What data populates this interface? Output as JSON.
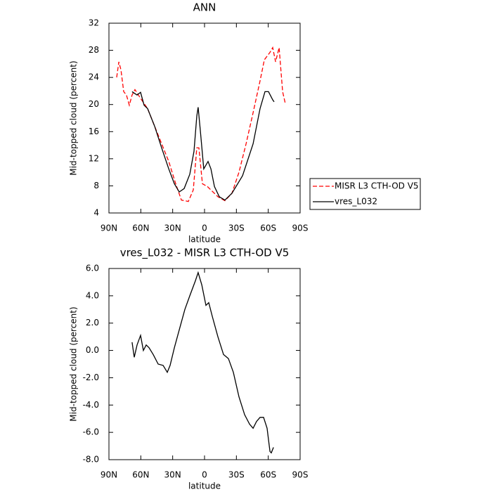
{
  "chart_data": [
    {
      "type": "line",
      "title": "ANN",
      "xlabel": "latitude",
      "ylabel": "Mid-topped cloud (percent)",
      "xlim": [
        90,
        -90
      ],
      "xticks": [
        {
          "value": 90,
          "label": "90N"
        },
        {
          "value": 60,
          "label": "60N"
        },
        {
          "value": 30,
          "label": "30N"
        },
        0,
        {
          "value": -30,
          "label": "30S"
        },
        {
          "value": -60,
          "label": "60S"
        },
        {
          "value": -90,
          "label": "90S"
        }
      ],
      "ylim": [
        4,
        32
      ],
      "yticks": [
        4,
        8,
        12,
        16,
        20,
        24,
        28,
        32
      ],
      "legend": "right",
      "series": [
        {
          "name": "MISR L3 CTH-OD V5",
          "color": "#ff0000",
          "dash": true,
          "x": [
            82.7,
            80.7,
            78.7,
            76.1,
            73.5,
            70.8,
            68.2,
            65.5,
            60.2,
            53.6,
            47.0,
            40.4,
            33.7,
            27.1,
            21.8,
            15.2,
            10.6,
            7.3,
            5.3,
            2.0,
            -2.7,
            -7.3,
            -12.6,
            -19.2,
            -25.8,
            -32.4,
            -39.1,
            -45.7,
            -52.3,
            -56.3,
            -61.6,
            -64.2,
            -66.9,
            -70.2,
            -73.5,
            -76.1
          ],
          "values": [
            24.0,
            26.3,
            25.1,
            21.9,
            21.4,
            19.9,
            21.4,
            22.2,
            20.9,
            19.4,
            16.8,
            14.2,
            11.6,
            8.3,
            5.9,
            5.7,
            7.4,
            13.6,
            13.6,
            8.3,
            7.9,
            7.2,
            6.4,
            5.8,
            6.9,
            10.0,
            14.2,
            18.8,
            23.5,
            26.6,
            27.7,
            28.4,
            26.3,
            28.4,
            21.9,
            20.1
          ]
        },
        {
          "name": "vres_L032",
          "color": "#000000",
          "dash": false,
          "x": [
            68.2,
            63.5,
            60.2,
            56.9,
            53.6,
            47.0,
            40.4,
            33.7,
            28.4,
            23.8,
            19.2,
            13.9,
            9.9,
            7.3,
            6.0,
            4.0,
            0.7,
            -3.3,
            -6.0,
            -9.3,
            -13.9,
            -19.2,
            -25.8,
            -35.8,
            -45.7,
            -52.3,
            -56.9,
            -60.2,
            -64.2,
            -65.5
          ],
          "values": [
            21.9,
            21.4,
            21.8,
            19.9,
            19.4,
            16.8,
            13.6,
            10.5,
            8.3,
            7.1,
            7.6,
            9.7,
            13.1,
            18.3,
            19.6,
            16.2,
            10.5,
            11.6,
            10.5,
            7.9,
            6.4,
            5.9,
            6.9,
            9.5,
            14.2,
            19.4,
            21.9,
            21.9,
            20.7,
            20.4
          ]
        }
      ]
    },
    {
      "type": "line",
      "title": "vres_L032 - MISR L3 CTH-OD V5",
      "xlabel": "latitude",
      "ylabel": "Mid-topped cloud (percent)",
      "xlim": [
        90,
        -90
      ],
      "xticks": [
        {
          "value": 90,
          "label": "90N"
        },
        {
          "value": 60,
          "label": "60N"
        },
        {
          "value": 30,
          "label": "30N"
        },
        0,
        {
          "value": -30,
          "label": "30S"
        },
        {
          "value": -60,
          "label": "60S"
        },
        {
          "value": -90,
          "label": "90S"
        }
      ],
      "ylim": [
        -8,
        6
      ],
      "yticks": [
        {
          "value": -8,
          "label": "-8.0"
        },
        {
          "value": -6,
          "label": "-6.0"
        },
        {
          "value": -4,
          "label": "-4.0"
        },
        {
          "value": -2,
          "label": "-2.0"
        },
        {
          "value": 0,
          "label": "0.0"
        },
        {
          "value": 2,
          "label": "2.0"
        },
        {
          "value": 4,
          "label": "4.0"
        },
        {
          "value": 6,
          "label": "6.0"
        }
      ],
      "color": "#000000",
      "x": [
        68.2,
        66.2,
        63.5,
        60.2,
        57.6,
        54.9,
        52.3,
        48.3,
        43.7,
        39.0,
        35.1,
        32.4,
        28.4,
        23.8,
        18.5,
        13.9,
        8.6,
        6.0,
        2.6,
        -1.3,
        -4.0,
        -7.3,
        -12.6,
        -17.9,
        -22.5,
        -27.1,
        -32.4,
        -37.7,
        -42.4,
        -45.7,
        -49.0,
        -52.3,
        -55.6,
        -58.9,
        -61.6,
        -62.9,
        -64.9
      ],
      "values": [
        0.6,
        -0.5,
        0.4,
        1.1,
        0.0,
        0.4,
        0.2,
        -0.3,
        -1.0,
        -1.1,
        -1.6,
        -1.1,
        0.2,
        1.5,
        3.0,
        4.0,
        5.1,
        5.7,
        4.8,
        3.3,
        3.5,
        2.5,
        1.0,
        -0.3,
        -0.6,
        -1.6,
        -3.4,
        -4.7,
        -5.4,
        -5.7,
        -5.2,
        -4.9,
        -4.9,
        -5.7,
        -7.4,
        -7.5,
        -7.1
      ]
    }
  ]
}
